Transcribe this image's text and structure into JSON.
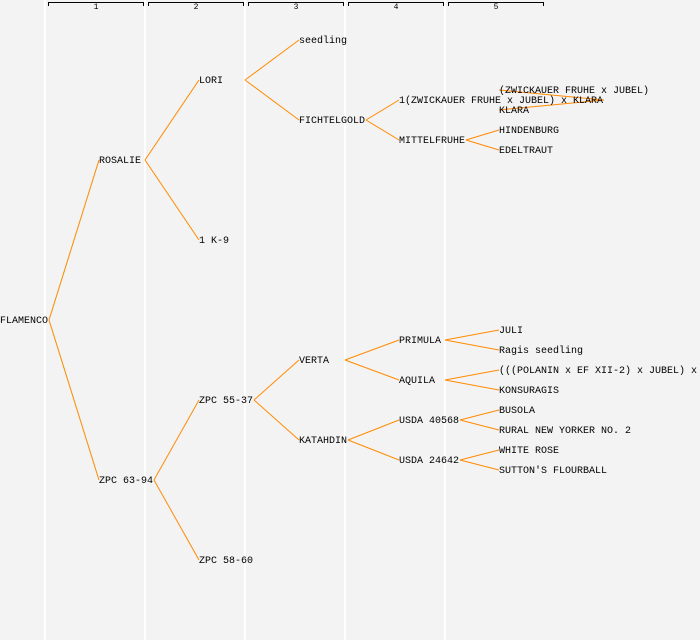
{
  "generations": [
    "1",
    "2",
    "3",
    "4",
    "5"
  ],
  "line_color": "#ff8a00",
  "tree": {
    "label": "FLAMENCO",
    "children": [
      {
        "label": "ROSALIE",
        "children": [
          {
            "label": "LORI",
            "children": [
              {
                "label": "seedling",
                "children": []
              },
              {
                "label": "FICHTELGOLD",
                "children": [
                  {
                    "label": "1(ZWICKAUER FRUHE x JUBEL) x KLARA",
                    "children": [
                      {
                        "label": "(ZWICKAUER FRUHE x JUBEL)",
                        "children": []
                      },
                      {
                        "label": "KLARA",
                        "children": []
                      }
                    ]
                  },
                  {
                    "label": "MITTELFRUHE",
                    "children": [
                      {
                        "label": "HINDENBURG",
                        "children": []
                      },
                      {
                        "label": "EDELTRAUT",
                        "children": []
                      }
                    ]
                  }
                ]
              }
            ]
          },
          {
            "label": "1 K-9",
            "children": []
          }
        ]
      },
      {
        "label": "ZPC 63-94",
        "children": [
          {
            "label": "ZPC 55-37",
            "children": [
              {
                "label": "VERTA",
                "children": [
                  {
                    "label": "PRIMULA",
                    "children": [
                      {
                        "label": "JULI",
                        "children": []
                      },
                      {
                        "label": "Ragis seedling",
                        "children": []
                      }
                    ]
                  },
                  {
                    "label": "AQUILA",
                    "children": [
                      {
                        "label": "(((POLANIN x EF XII-2) x JUBEL) x",
                        "children": []
                      },
                      {
                        "label": "KONSURAGIS",
                        "children": []
                      }
                    ]
                  }
                ]
              },
              {
                "label": "KATAHDIN",
                "children": [
                  {
                    "label": "USDA 40568",
                    "children": [
                      {
                        "label": "BUSOLA",
                        "children": []
                      },
                      {
                        "label": "RURAL NEW YORKER NO. 2",
                        "children": []
                      }
                    ]
                  },
                  {
                    "label": "USDA 24642",
                    "children": [
                      {
                        "label": "WHITE ROSE",
                        "children": []
                      },
                      {
                        "label": "SUTTON'S FLOURBALL",
                        "children": []
                      }
                    ]
                  }
                ]
              }
            ]
          },
          {
            "label": "ZPC 58-60",
            "children": []
          }
        ]
      }
    ]
  }
}
